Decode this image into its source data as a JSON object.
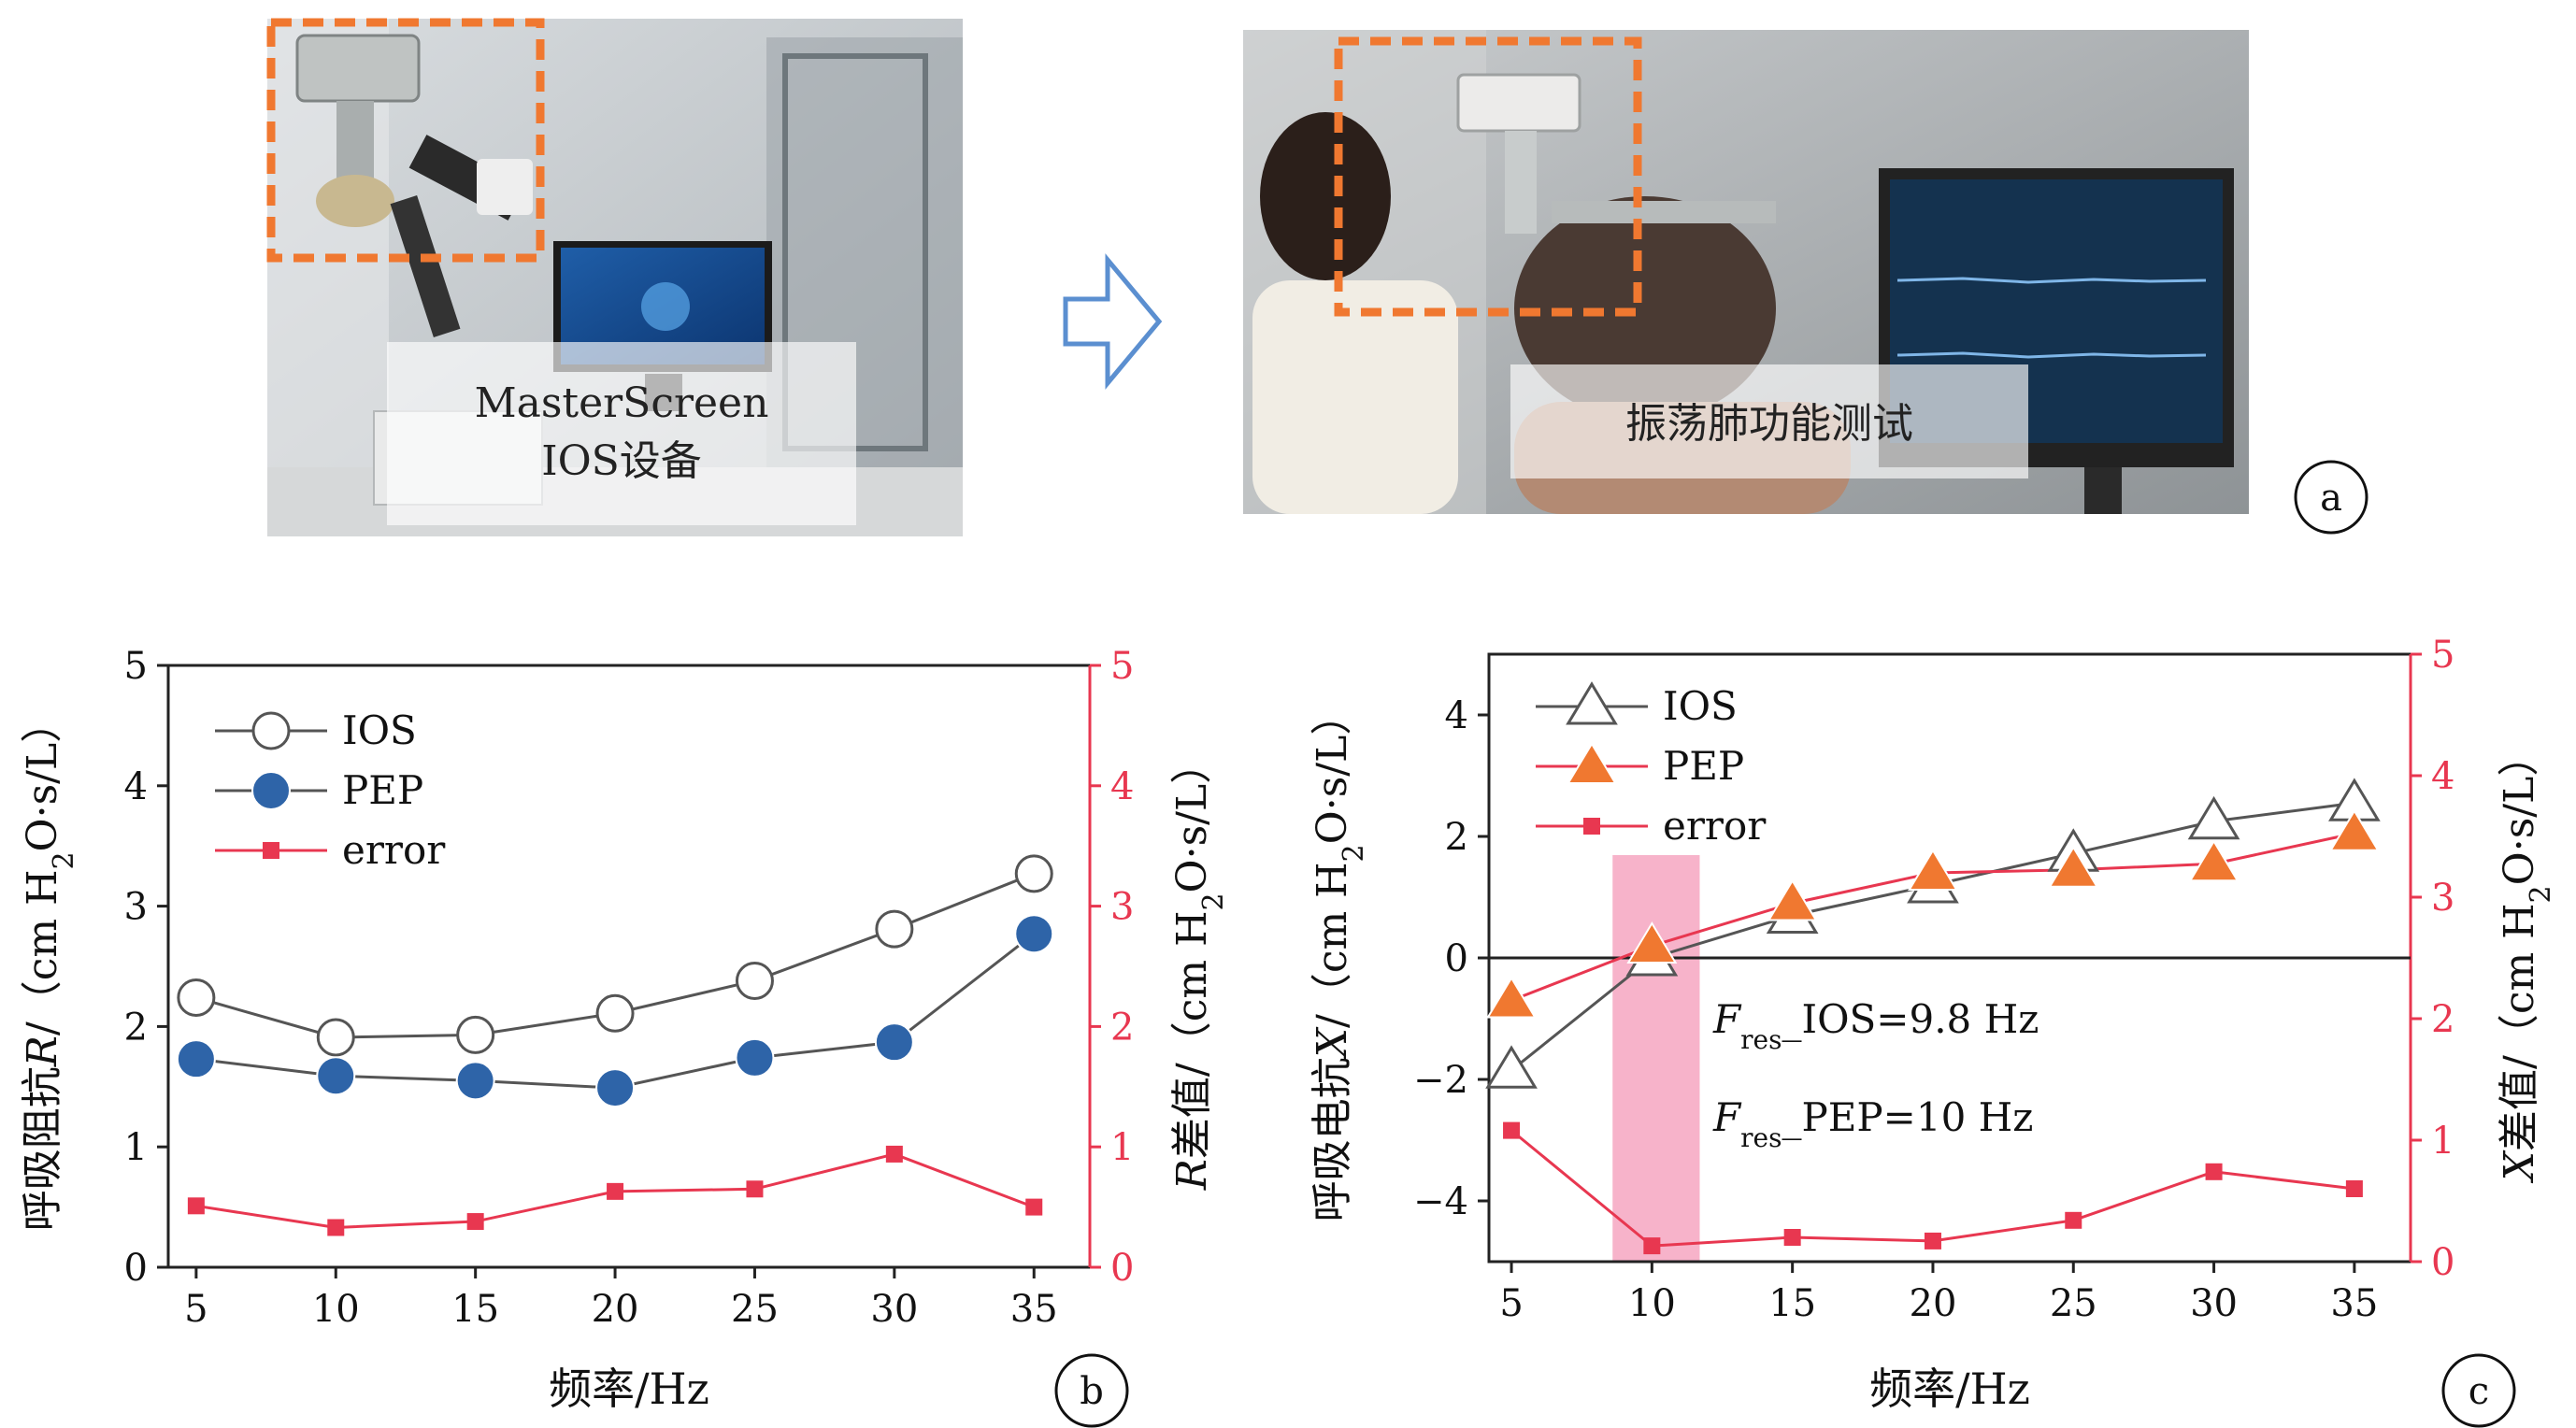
{
  "photos": {
    "left_caption_line1": "MasterScreen",
    "left_caption_line2": "IOS设备",
    "right_caption": "振荡肺功能测试",
    "panel_label": "a"
  },
  "chart_data": [
    {
      "type": "scatter",
      "panel_label": "b",
      "xlabel": "频率/Hz",
      "ylabel": "呼吸阻抗R/（cm H2O·s/L）",
      "ylabel_parts": [
        "呼吸阻抗",
        "R",
        "/（cm H",
        "2",
        "O·s/L）"
      ],
      "y2label": "R差值/（cm H2O·s/L）",
      "y2label_parts": [
        "R",
        "差值/（cm H",
        "2",
        "O·s/L）"
      ],
      "x": [
        5,
        10,
        15,
        20,
        25,
        30,
        35
      ],
      "xticks": [
        "5",
        "10",
        "15",
        "20",
        "25",
        "30",
        "35"
      ],
      "xlim": [
        4,
        37
      ],
      "ylim": [
        0,
        5
      ],
      "yticks": [
        "0",
        "1",
        "2",
        "3",
        "4",
        "5"
      ],
      "y2lim": [
        0,
        5
      ],
      "y2ticks": [
        "0",
        "1",
        "2",
        "3",
        "4",
        "5"
      ],
      "legend_position": "top-left",
      "series": [
        {
          "name": "IOS",
          "axis": "left",
          "marker": "open-circle",
          "color": "#555555",
          "values": [
            2.24,
            1.91,
            1.93,
            2.11,
            2.38,
            2.81,
            3.27
          ]
        },
        {
          "name": "PEP",
          "axis": "left",
          "marker": "filled-circle",
          "color": "#2e64a8",
          "values": [
            1.73,
            1.59,
            1.55,
            1.49,
            1.74,
            1.87,
            2.77
          ]
        },
        {
          "name": "error",
          "axis": "right",
          "marker": "square",
          "color": "#e83750",
          "values": [
            0.51,
            0.33,
            0.38,
            0.63,
            0.65,
            0.94,
            0.5
          ]
        }
      ]
    },
    {
      "type": "scatter",
      "panel_label": "c",
      "xlabel": "频率/Hz",
      "ylabel": "呼吸电抗X/（cm H2O·s/L）",
      "ylabel_parts": [
        "呼吸电抗",
        "X",
        "/（cm H",
        "2",
        "O·s/L）"
      ],
      "y2label": "X差值/（cm H2O·s/L）",
      "y2label_parts": [
        "X",
        "差值/（cm H",
        "2",
        "O·s/L）"
      ],
      "x": [
        5,
        10,
        15,
        20,
        25,
        30,
        35
      ],
      "xticks": [
        "5",
        "10",
        "15",
        "20",
        "25",
        "30",
        "35"
      ],
      "xlim": [
        4.2,
        37
      ],
      "ylim": [
        -5,
        5
      ],
      "yticks": [
        "−4",
        "−2",
        "0",
        "2",
        "4"
      ],
      "ytick_values": [
        -4,
        -2,
        0,
        2,
        4
      ],
      "y2lim": [
        0,
        5
      ],
      "y2ticks": [
        "0",
        "1",
        "2",
        "3",
        "4",
        "5"
      ],
      "legend_position": "top-left",
      "highlight_band": [
        8.6,
        11.7
      ],
      "annotations": [
        {
          "main": "F",
          "sub": "res",
          "text": "_IOS=9.8 Hz"
        },
        {
          "main": "F",
          "sub": "res",
          "text": "_PEP=10 Hz"
        }
      ],
      "series": [
        {
          "name": "IOS",
          "axis": "left",
          "marker": "open-triangle",
          "color": "#555555",
          "values": [
            -1.85,
            0.0,
            0.7,
            1.2,
            1.72,
            2.25,
            2.55
          ]
        },
        {
          "name": "PEP",
          "axis": "left",
          "marker": "filled-triangle",
          "color": "#f07830",
          "values": [
            -0.7,
            0.2,
            0.9,
            1.4,
            1.45,
            1.55,
            2.05
          ]
        },
        {
          "name": "error",
          "axis": "right",
          "marker": "square",
          "color": "#e83750",
          "values": [
            1.08,
            0.13,
            0.2,
            0.17,
            0.34,
            0.74,
            0.6
          ]
        }
      ]
    }
  ]
}
